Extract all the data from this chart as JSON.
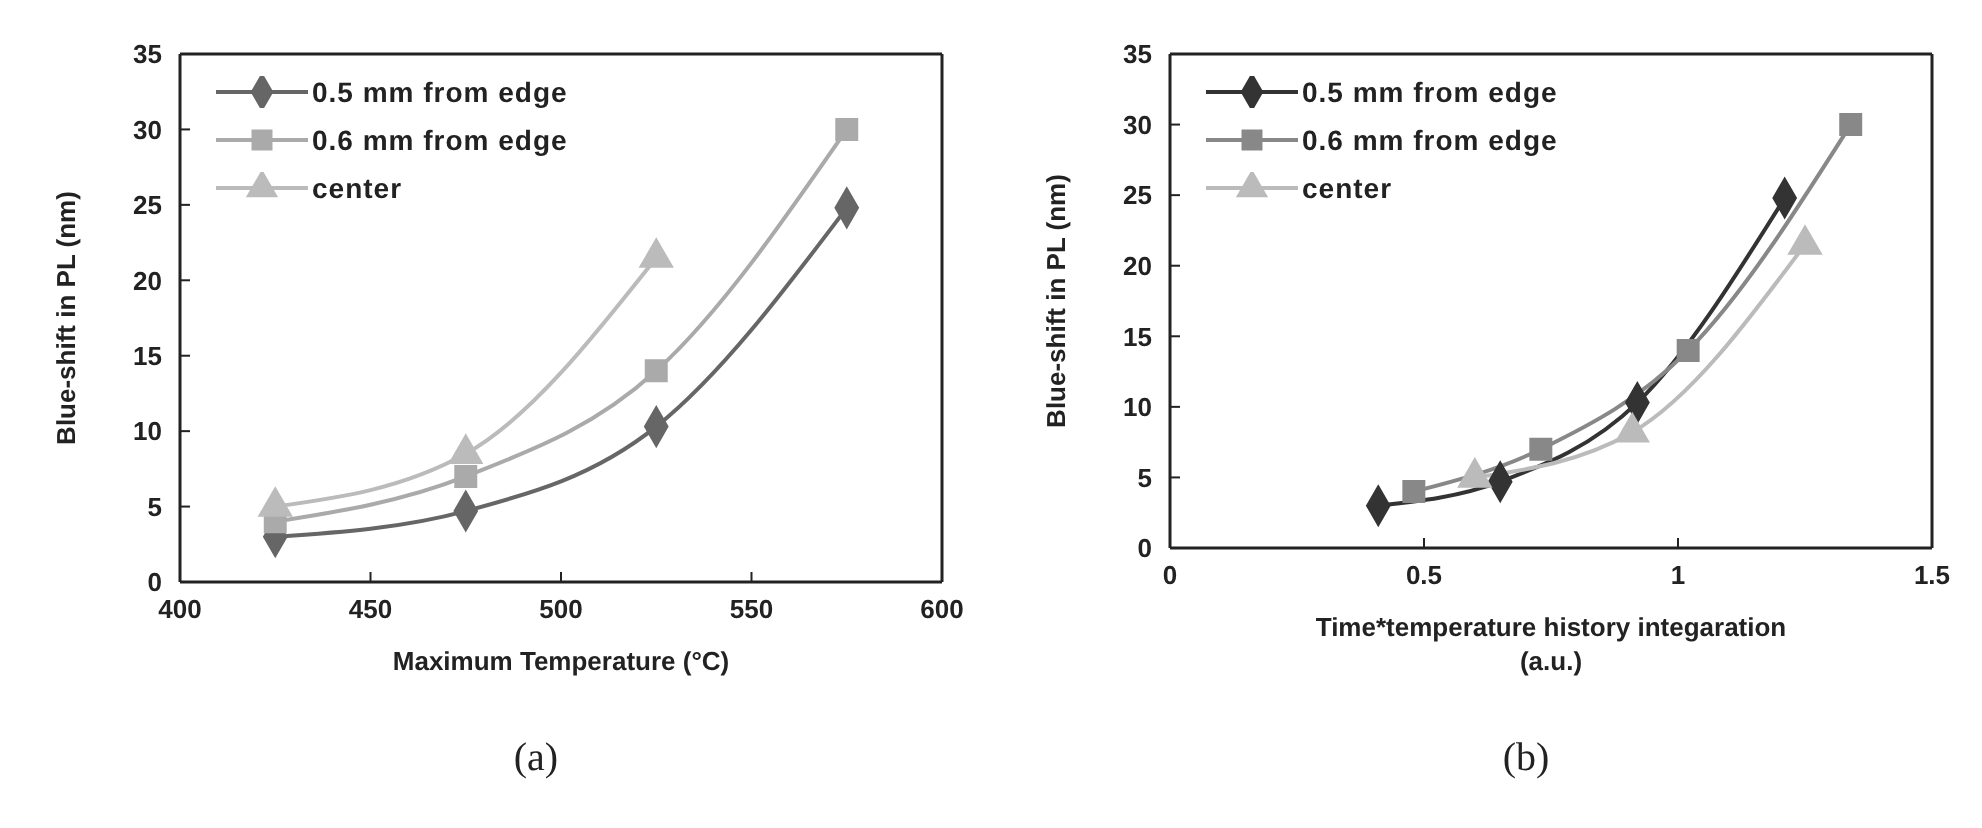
{
  "chart_data": [
    {
      "type": "line",
      "xlabel": "Maximum Temperature (°C)",
      "ylabel": "Blue-shift in PL (nm)",
      "xlim": [
        400,
        600
      ],
      "xticks": [
        400,
        450,
        500,
        550,
        600
      ],
      "ylim": [
        0,
        35
      ],
      "yticks": [
        0,
        5,
        10,
        15,
        20,
        25,
        30,
        35
      ],
      "grid": false,
      "legend": "top left",
      "annotations": [
        "(a)"
      ],
      "series": [
        {
          "name": "0.5 mm from edge",
          "color": "#666666",
          "marker": "diamond",
          "x": [
            425,
            475,
            525,
            575
          ],
          "values": [
            3,
            4.7,
            10.3,
            24.8
          ]
        },
        {
          "name": "0.6 mm from edge",
          "color": "#aaaaaa",
          "marker": "square",
          "x": [
            425,
            475,
            525,
            575
          ],
          "values": [
            4,
            7,
            14,
            30
          ]
        },
        {
          "name": "center",
          "color": "#bbbbbb",
          "marker": "triangle",
          "x": [
            425,
            475,
            525
          ],
          "values": [
            5,
            8.5,
            21.5
          ]
        }
      ]
    },
    {
      "type": "line",
      "xlabel": "Time*temperature history integaration\n(a.u.)",
      "ylabel": "Blue-shift in PL (nm)",
      "xlim": [
        0,
        1.5
      ],
      "xticks": [
        0,
        0.5,
        1,
        1.5
      ],
      "ylim": [
        0,
        35
      ],
      "yticks": [
        0,
        5,
        10,
        15,
        20,
        25,
        30,
        35
      ],
      "grid": false,
      "legend": "top left",
      "annotations": [
        "(b)"
      ],
      "series": [
        {
          "name": "0.5 mm from edge",
          "color": "#333333",
          "marker": "diamond",
          "x": [
            0.41,
            0.65,
            0.92,
            1.21
          ],
          "values": [
            3,
            4.7,
            10.3,
            24.8
          ]
        },
        {
          "name": "0.6 mm from edge",
          "color": "#888888",
          "marker": "square",
          "x": [
            0.48,
            0.73,
            1.02,
            1.34
          ],
          "values": [
            4,
            7,
            14,
            30
          ]
        },
        {
          "name": "center",
          "color": "#bbbbbb",
          "marker": "triangle",
          "x": [
            0.6,
            0.91,
            1.25
          ],
          "values": [
            5,
            8.2,
            21.5
          ]
        }
      ]
    }
  ]
}
